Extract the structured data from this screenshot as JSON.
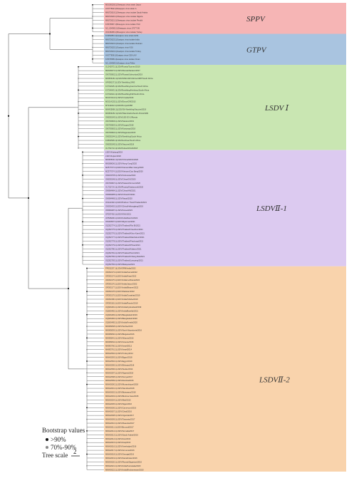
{
  "clades": [
    {
      "label": "SPPV",
      "color": "#f6b5b5",
      "leaves": [
        "MG000156.1|Sheeppox virus strain Jaipur",
        "AY077832.1|Sheeppox virus strain A",
        "MN072619.1|Sheeppox virus isolate Saudi Arabia",
        "MN072620.1|Sheeppox virus isolate Nigeria",
        "MN072621.1|Sheeppox virus isolate Pendik",
        "KX576657.1|Sheeppox virus isolate VSU",
        "NC_004002.1|Sheeppox virus 17077-99",
        "OK318465.1|Sheeppox virus isolate Turkey"
      ]
    },
    {
      "label": "GTPV",
      "color": "#a9c4e0",
      "leaves": [
        "KC951854.1|Goatpox virus strain AV41",
        "MN072623.1|Goatpox virus isolate India",
        "MN072624.1|Goatpox virus isolate Vietnam",
        "MN072625.1|Goatpox virus VSU",
        "MN072622.1|Goatpox virus isolate Turkey",
        "AY077836.1|Goatpox virus G20-LKV",
        "KX576658.1|Goatpox virus isolate Oman",
        "NC_004003.1|Goatpox virus Pellor"
      ]
    },
    {
      "label": "LSDV Ⅰ",
      "color": "#c9e6b2",
      "leaves": [
        "OL342973.1|LSDV/Russia/Tyumen/2019",
        "MH646674.1|LSDV/Russia/Saratov/2017",
        "OM793602.1|LSDV/Russia/Udmurtiya/2019",
        "MW656464.1|LSDV/MAI/LSDV/Africa/1987/South Africa",
        "AF409137.1|LSDV Neethling 2490",
        "KX764645.1|LSDV/Neethling/vaccine/South Africa",
        "KX764643.1|LSDV/Neethling/Herbivac/South Africa",
        "KX764644.1|LSDV/Neethling/LW/South Africa",
        "MG972412.1|LSDV/Croatia/2016",
        "MG014135.1|LSDV/Evros/GR/2015",
        "MT134042.1|LSDV/Kenya/1958",
        "MW435866.1|LSDV/SA-Neethling/Vaccine/2019",
        "MW656252.1|LSDV/Warmbaths/South Africa/1999",
        "OM530243.1|LSDV/LSD-D3-1/Russia",
        "OM793606.1|LSDV/Saratov/2019",
        "OM793603.1|LSDV/Kurgan/2018",
        "OM793605.1|LSDV/Kostanay/2018",
        "OM793604.1|LSDV/Dagestan/2015",
        "OM530244.1|LSDV/Neethling/South Africa",
        "KX894508.1|LSDV/Herbivac/South Africa",
        "OM530245.1|LSDV/Vaccine/2018",
        "OL752713.1|LSDV/Kubash/KAZ/2018"
      ]
    },
    {
      "label": "LSDVⅡ-1",
      "color": "#dccaf0",
      "leaves": [
        "LSDV/Xinjiang/2019",
        "LSDV/Fujian/2020",
        "MW355944.1|LSDV/China/GD01/2020",
        "MN598006.1|LSDV/Hong Kong/2020",
        "MZ577073.1|LSDV/Vietnam/Bac Giang/2020",
        "MZ577074.1|LSDV/Vietnam/Cao Bang/2020",
        "OM033705.1|LSDV/Indonesia/2022",
        "OM530246.1|LSDV/China/GX/2020",
        "OM793607.1|LSDV/Taiwan/Kinmen/2020",
        "OL752714.1|LSDV/Russia/Khabarovsk/2020",
        "OM984484.1|LSDV/China/HN/2021",
        "OM984485.1|LSDV/China/JX/2021",
        "OM984486.1|LSDV/Nepal/2020",
        "OK422492.1|LSDV/Pathum Thani/Thailand/2021",
        "ON930403.1|LSDV/China/Heilongjiang/2019",
        "OM984487.1|LSDV/Korea/2023",
        "OP297402.1|LSDV/VNU/2021",
        "OP508296.1|LSDV/India/Ranchi/2022",
        "ON400507.1|LSDV/Myanmar/2021",
        "OQ352774.1|LSDV/Thailand/Roi Et/2021",
        "OQ352775.1|LSDV/Thailand/Yasothon/2021",
        "OQ352776.1|LSDV/Thailand/Khon Kaen/2021",
        "OQ352777.1|LSDV/Thailand/Ratchaburi/2021",
        "OQ352778.1|LSDV/Thailand/Prachuap/2021",
        "OQ352779.1|LSDV/Thailand/Phrae/2021",
        "OQ352780.1|LSDV/Thailand/Kalasin/2021",
        "OQ352781.1|LSDV/Thailand/Surin/2021",
        "OQ352782.1|LSDV/Thailand/Chiang Rai/2021",
        "OQ352783.1|LSDV/Thailand/Lampang/2021",
        "OQ352784.1|LSDV/Malaysia/2021"
      ]
    },
    {
      "label": "LSDVⅡ-2",
      "color": "#f9d3ac",
      "leaves": [
        "PP052237.1|LSDV/SRM/India/2022",
        "OR393173.1|LSDV/India/Karnal/2022",
        "OR393174.1|LSDV/India/Hisar/2022",
        "OR393175.1|LSDV/India/Ludhiana/2022",
        "OR393176.1|LSDV/India/Jaipur/2022",
        "OR393177.1|LSDV/India/Bikaner/2022",
        "OR393178.1|LSDV/Pakistan/2022",
        "OR393179.1|LSDV/India/Guwahati/2019",
        "OR393180.1|LSDV/India/Odisha/2019",
        "OR393181.1|LSDV/India/Ranchi/2019",
        "OQ606481.1|LSDV/India/Hyderabad/2019",
        "OQ606482.1|LSDV/India/Bareilly/2021",
        "OQ606483.1|LSDV/Bangladesh/2019",
        "OQ606484.1|LSDV/Bangladesh/2020",
        "OQ606485.1|LSDV/India/Kerala/2020",
        "MN995838.1|LSDV/Serbia/2016",
        "MN995839.1|LSDV/North Macedonia/2016",
        "MN995840.1|LSDV/Bulgaria/2016",
        "MN995841.1|LSDV/Albania/2016",
        "MN995842.1|LSDV/Greece/2016",
        "MH893760.1|LSDV/Israel/2012",
        "MH893761.1|LSDV/Israel/2014",
        "MN642592.1|LSDV/Turkey/2014",
        "MN642593.1|LSDV/Egypt/2018",
        "MN642594.1|LSDV/Egypt/2019",
        "MN642595.1|LSDV/Ethiopia/2018",
        "MN642596.1|LSDV/Sudan/2014",
        "MN642597.1|LSDV/Nigeria/2018",
        "MN642598.1|LSDV/Kenya/2017",
        "MN642599.1|LSDV/Zambia/2016",
        "MN642600.1|LSDV/Mozambique/2018",
        "MN642601.1|LSDV/Namibia/2018",
        "MN642602.1|LSDV/Botswana/2018",
        "MN642603.1|LSDV/Burkina Faso/2015",
        "MN642604.1|LSDV/Mali/2015",
        "MN642605.1|LSDV/Niger/2016",
        "MN642606.1|LSDV/Cameroon/2016",
        "MN642607.1|LSDV/Chad/2016",
        "MN642608.1|LSDV/Uganda/2017",
        "MN642609.1|LSDV/Tanzania/2017",
        "MN642610.1|LSDV/Rwanda/2017",
        "MN642611.1|LSDV/Burundi/2017",
        "MN642612.1|LSDV/Somalia/2017",
        "MN642613.1|LSDV/Saudi Arabia/2016",
        "MN642614.1|LSDV/Iran/2016",
        "MN642615.1|LSDV/Iraq/2016",
        "MN642616.1|LSDV/Azerbaijan/2016",
        "MN642617.1|LSDV/Armenia/2016",
        "MN642618.1|LSDV/Georgia/2016",
        "MN642619.1|LSDV/Kazakhstan/2016",
        "MN642620.1|LSDV/Russia/Dagestan/2016",
        "MN642621.1|LSDV/India/Karnataka/2020",
        "MN642622.1|LSDV/India/Bhubaneswar/2020"
      ]
    }
  ],
  "legend": {
    "title": "Bootstrap values",
    "items": [
      {
        "label": ">90%",
        "color": "#111111"
      },
      {
        "label": "70%-90%",
        "color": "#8a8a8a"
      }
    ],
    "tree_scale_label": "Tree scale",
    "tree_scale_value": "2"
  }
}
